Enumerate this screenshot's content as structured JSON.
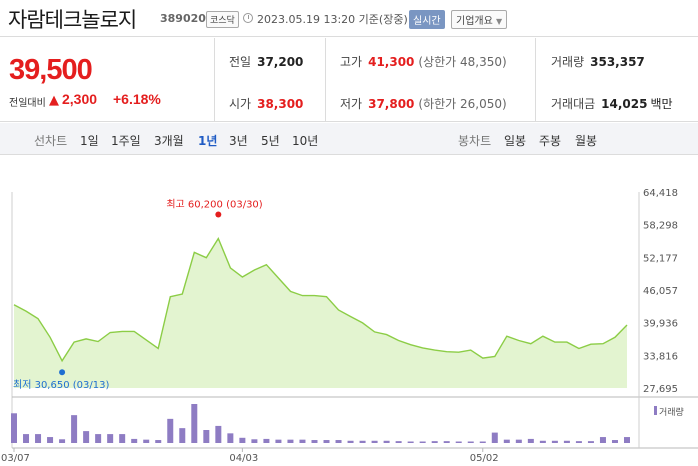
{
  "header": {
    "company": "자람테크놀로지",
    "code": "389020",
    "market": "코스닥",
    "datetime": "2023.05.19 13:20 기준(장중)",
    "realtime_label": "실시간",
    "overview_label": "기업개요",
    "overview_caret": "▼"
  },
  "summary": {
    "price": "39,500",
    "change_label": "전일대비",
    "change_arrow": "▲",
    "change_amount": "2,300",
    "change_percent": "+6.18%",
    "prev_close": {
      "label": "전일",
      "value": "37,200"
    },
    "open": {
      "label": "시가",
      "value": "38,300"
    },
    "high": {
      "label": "고가",
      "value": "41,300",
      "sub": "(상한가 48,350)"
    },
    "low": {
      "label": "저가",
      "value": "37,800",
      "sub": "(하한가 26,050)"
    },
    "volume": {
      "label": "거래량",
      "value": "353,357"
    },
    "amount": {
      "label": "거래대금",
      "value": "14,025",
      "unit": "백만"
    }
  },
  "periods": {
    "line_label": "선차트",
    "line_items": [
      "1일",
      "1주일",
      "3개월",
      "1년",
      "3년",
      "5년",
      "10년"
    ],
    "selected": "1년",
    "candle_label": "봉차트",
    "candle_items": [
      "일봉",
      "주봉",
      "월봉"
    ]
  },
  "colors": {
    "up": "#e41e1e",
    "selected": "#1f5bc4",
    "line": "#8ccd46",
    "fill": "#e3f4d0",
    "volume": "#8e7cc3",
    "low_marker": "#1f6fd1",
    "high_marker": "#e41e1e"
  },
  "chart_data": {
    "type": "area",
    "x": [
      "03/07",
      "03/08",
      "03/09",
      "03/10",
      "03/13",
      "03/14",
      "03/15",
      "03/16",
      "03/17",
      "03/20",
      "03/21",
      "03/22",
      "03/23",
      "03/24",
      "03/27",
      "03/28",
      "03/29",
      "03/30",
      "03/31",
      "04/03",
      "04/04",
      "04/05",
      "04/06",
      "04/07",
      "04/10",
      "04/11",
      "04/12",
      "04/13",
      "04/14",
      "04/17",
      "04/18",
      "04/19",
      "04/20",
      "04/21",
      "04/24",
      "04/25",
      "04/26",
      "04/27",
      "04/28",
      "05/02",
      "05/03",
      "05/04",
      "05/08",
      "05/09",
      "05/10",
      "05/11",
      "05/12",
      "05/15",
      "05/16",
      "05/17",
      "05/18",
      "05/19"
    ],
    "y": [
      43300,
      42100,
      40700,
      37200,
      32800,
      36300,
      36900,
      36400,
      38100,
      38300,
      38300,
      36700,
      35100,
      44800,
      45300,
      53100,
      52100,
      55700,
      50200,
      48500,
      49800,
      50800,
      48300,
      45800,
      45000,
      45000,
      44800,
      42300,
      41100,
      39900,
      38200,
      37700,
      36600,
      35800,
      35200,
      34800,
      34500,
      34400,
      34800,
      33300,
      33600,
      37400,
      36600,
      36000,
      37400,
      36300,
      36300,
      35100,
      35900,
      36000,
      37200,
      39500
    ],
    "volume": [
      8,
      2.4,
      2.4,
      1.6,
      1,
      7.5,
      3.2,
      2.4,
      2.4,
      2.4,
      1.1,
      0.9,
      0.8,
      6.5,
      4,
      10.5,
      3.5,
      4.6,
      2.6,
      1.4,
      1,
      1.1,
      0.9,
      0.9,
      0.9,
      0.8,
      0.8,
      0.8,
      0.6,
      0.6,
      0.6,
      0.6,
      0.5,
      0.4,
      0.4,
      0.5,
      0.5,
      0.4,
      0.4,
      0.4,
      2.8,
      0.9,
      0.9,
      1.1,
      0.6,
      0.6,
      0.6,
      0.5,
      0.5,
      1.6,
      0.8,
      1.6
    ],
    "ylim": [
      27695,
      64418
    ],
    "yticks": [
      "64,418",
      "58,298",
      "52,177",
      "46,057",
      "39,936",
      "33,816",
      "27,695"
    ],
    "xticks": [
      "03/07",
      "04/03",
      "05/02"
    ],
    "high_label": "최고 60,200 (03/30)",
    "high_value": 60200,
    "high_x": "03/30",
    "low_label": "최저 30,650 (03/13)",
    "low_value": 30650,
    "low_x": "03/13",
    "volume_legend": "거래량"
  }
}
